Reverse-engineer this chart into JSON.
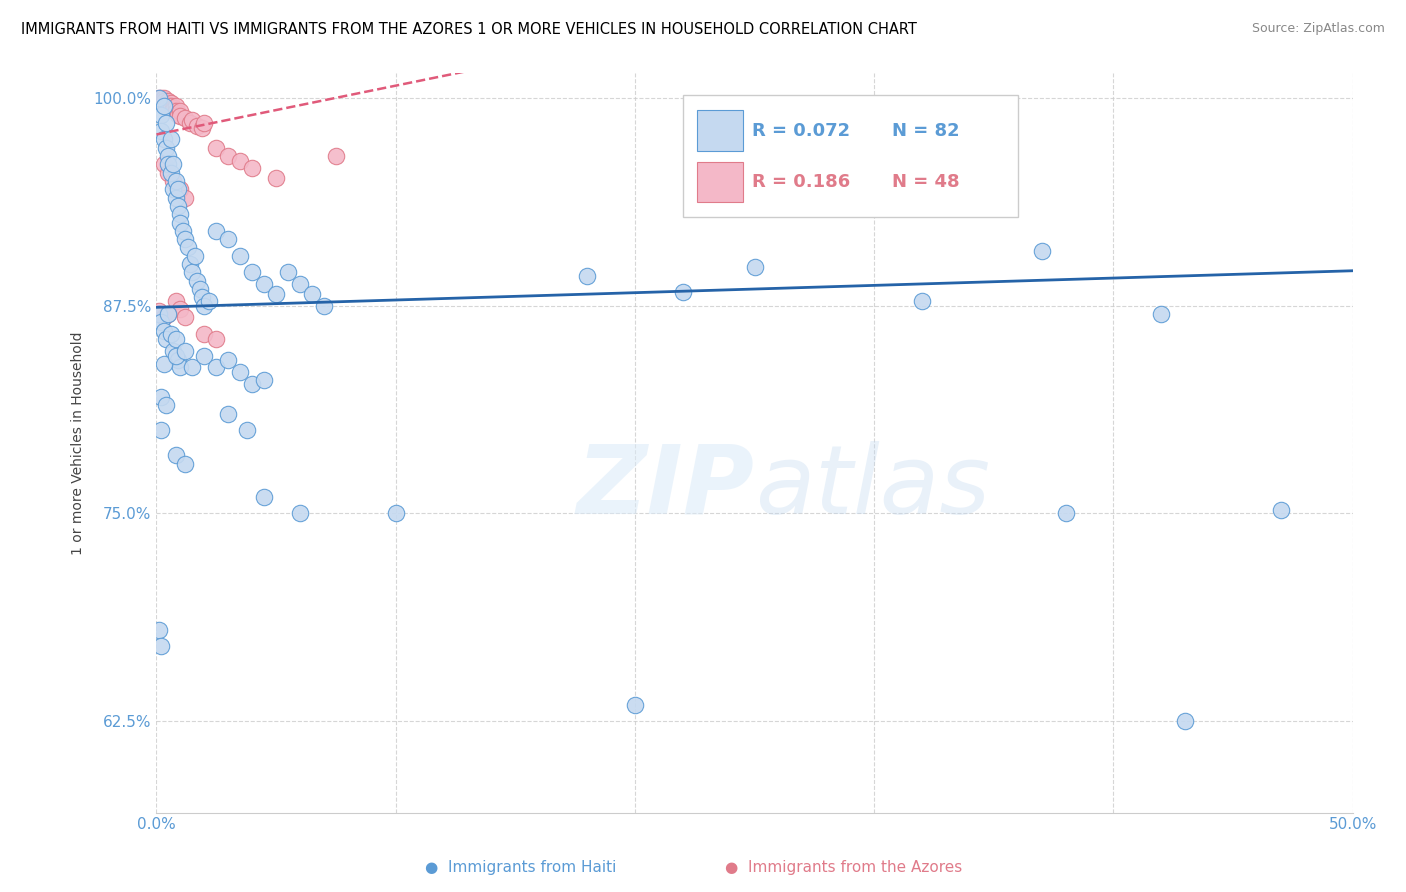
{
  "title": "IMMIGRANTS FROM HAITI VS IMMIGRANTS FROM THE AZORES 1 OR MORE VEHICLES IN HOUSEHOLD CORRELATION CHART",
  "source": "Source: ZipAtlas.com",
  "ylabel": "1 or more Vehicles in Household",
  "xlim": [
    0.0,
    0.5
  ],
  "ylim": [
    0.57,
    1.015
  ],
  "haiti_color": "#c5d9f0",
  "haiti_edge_color": "#5b9bd5",
  "azores_color": "#f4b8c8",
  "azores_edge_color": "#e07b8a",
  "haiti_line_color": "#2563a8",
  "azores_line_color": "#e05a7a",
  "R_haiti": 0.072,
  "N_haiti": 82,
  "R_azores": 0.186,
  "N_azores": 48,
  "watermark_zip": "ZIP",
  "watermark_atlas": "atlas",
  "legend_R_haiti_color": "#5b9bd5",
  "legend_R_azores_color": "#e07b8a"
}
